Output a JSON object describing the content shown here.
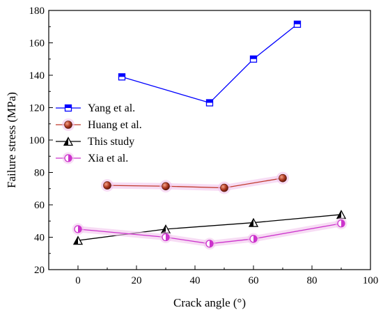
{
  "chart_data": {
    "type": "line",
    "xlabel": "Crack angle (°)",
    "ylabel": "Failure stress (MPa)",
    "xlim": [
      -10,
      100
    ],
    "ylim": [
      20,
      180
    ],
    "xticks": [
      0,
      20,
      40,
      60,
      80,
      100
    ],
    "yticks": [
      20,
      40,
      60,
      80,
      100,
      120,
      140,
      160,
      180
    ],
    "grid": false,
    "legend_position": "middle-left",
    "series": [
      {
        "name": "Yang et al.",
        "color": "#0000ff",
        "marker": "half-filled-square",
        "x": [
          15,
          45,
          60,
          75
        ],
        "y": [
          139,
          123,
          150,
          171.5
        ]
      },
      {
        "name": "Huang et al.",
        "color": "#c0392b",
        "marker": "sphere",
        "x": [
          10,
          30,
          50,
          70
        ],
        "y": [
          72,
          71.5,
          70.5,
          76.5
        ]
      },
      {
        "name": "This study",
        "color": "#000000",
        "marker": "half-filled-triangle",
        "x": [
          0,
          30,
          60,
          90
        ],
        "y": [
          38,
          45,
          49,
          54
        ]
      },
      {
        "name": "Xia et al.",
        "color": "#cc33cc",
        "marker": "half-filled-circle",
        "x": [
          0,
          30,
          45,
          60,
          90
        ],
        "y": [
          45,
          40,
          36,
          39,
          48.5
        ]
      }
    ]
  }
}
